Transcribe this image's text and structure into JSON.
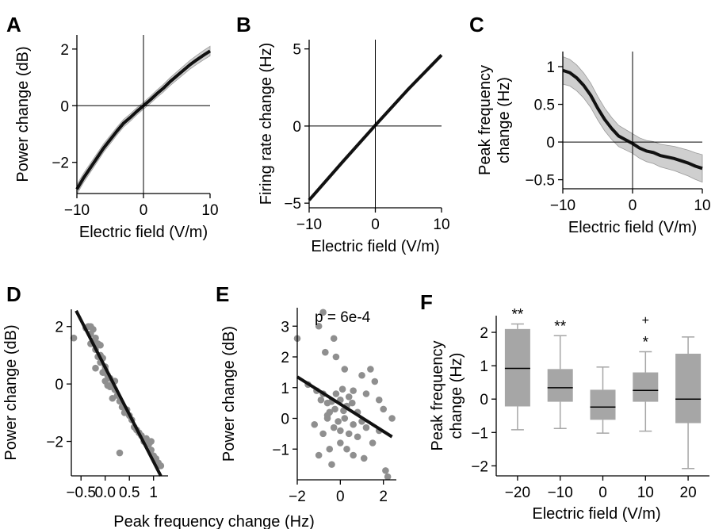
{
  "figure": {
    "shared_xlabel_DE": "Peak frequency change (Hz)"
  },
  "panels": {
    "A": {
      "letter": "A"
    },
    "B": {
      "letter": "B"
    },
    "C": {
      "letter": "C"
    },
    "D": {
      "letter": "D"
    },
    "E": {
      "letter": "E"
    },
    "F": {
      "letter": "F"
    }
  },
  "colors": {
    "line": "#111111",
    "band": "#cfcfcf",
    "band_edge": "#9a9a9a",
    "point": "#8f8f8f",
    "box": "#a6a6a6",
    "axis": "#000000"
  },
  "chart_data": [
    {
      "id": "A",
      "type": "line",
      "xlabel": "Electric field (V/m)",
      "ylabel": "Power change (dB)",
      "xlim": [
        -10,
        10
      ],
      "ylim": [
        -3.1,
        2.5
      ],
      "xticks": [
        -10,
        0,
        10
      ],
      "xtick_labels": [
        "−10",
        "0",
        "10"
      ],
      "yticks": [
        -2,
        0,
        2
      ],
      "ytick_labels": [
        "−2",
        "0",
        "2"
      ],
      "zero_lines": true,
      "confidence_band": true,
      "x": [
        -10,
        -9,
        -8,
        -7,
        -6,
        -5,
        -4,
        -3,
        -2,
        -1,
        0,
        1,
        2,
        3,
        4,
        5,
        6,
        7,
        8,
        9,
        10
      ],
      "y": [
        -2.95,
        -2.55,
        -2.2,
        -1.85,
        -1.5,
        -1.2,
        -0.9,
        -0.62,
        -0.42,
        -0.2,
        0,
        0.2,
        0.42,
        0.62,
        0.85,
        1.05,
        1.25,
        1.45,
        1.62,
        1.78,
        1.93
      ],
      "band_halfwidth": 0.12
    },
    {
      "id": "B",
      "type": "line",
      "xlabel": "Electric field (V/m)",
      "ylabel": "Firing rate change (Hz)",
      "xlim": [
        -10,
        10
      ],
      "ylim": [
        -5.3,
        5.6
      ],
      "xticks": [
        -10,
        0,
        10
      ],
      "xtick_labels": [
        "−10",
        "0",
        "10"
      ],
      "yticks": [
        -5,
        0,
        5
      ],
      "ytick_labels": [
        "−5",
        "0",
        "5"
      ],
      "zero_lines": true,
      "confidence_band": false,
      "x": [
        -10,
        -5,
        0,
        5,
        10
      ],
      "y": [
        -4.8,
        -2.35,
        0.05,
        2.4,
        4.6
      ]
    },
    {
      "id": "C",
      "type": "line",
      "xlabel": "Electric field (V/m)",
      "ylabel": "Peak frequency change (Hz)",
      "xlim": [
        -10,
        10
      ],
      "ylim": [
        -0.62,
        1.2
      ],
      "xticks": [
        -10,
        0,
        10
      ],
      "xtick_labels": [
        "−10",
        "0",
        "10"
      ],
      "yticks": [
        -0.5,
        0,
        0.5,
        1
      ],
      "ytick_labels": [
        "−0.5",
        "0",
        "0.5",
        "1"
      ],
      "zero_lines": true,
      "confidence_band": true,
      "x": [
        -10,
        -9,
        -8,
        -7,
        -6,
        -5,
        -4,
        -3,
        -2,
        -1,
        0,
        1,
        2,
        3,
        4,
        5,
        6,
        7,
        8,
        9,
        10
      ],
      "y": [
        0.95,
        0.92,
        0.85,
        0.75,
        0.62,
        0.45,
        0.3,
        0.18,
        0.08,
        0.03,
        -0.02,
        -0.08,
        -0.12,
        -0.14,
        -0.18,
        -0.2,
        -0.22,
        -0.25,
        -0.28,
        -0.32,
        -0.35
      ],
      "band_halfwidth": 0.13
    },
    {
      "id": "D",
      "type": "scatter",
      "xlabel": "",
      "ylabel": "Power change (dB)",
      "xlim": [
        -0.7,
        1.3
      ],
      "ylim": [
        -3.2,
        2.6
      ],
      "xticks": [
        -0.5,
        0,
        0.5,
        1
      ],
      "xtick_labels": [
        "−0.5",
        "0.0",
        "0.5",
        "1"
      ],
      "yticks": [
        -2,
        0,
        2
      ],
      "ytick_labels": [
        "−2",
        "0",
        "2"
      ],
      "points": [
        [
          -0.65,
          1.6
        ],
        [
          -0.4,
          1.95
        ],
        [
          -0.35,
          2.0
        ],
        [
          -0.3,
          2.0
        ],
        [
          -0.25,
          1.9
        ],
        [
          -0.3,
          1.75
        ],
        [
          -0.2,
          1.6
        ],
        [
          -0.25,
          1.5
        ],
        [
          -0.15,
          1.4
        ],
        [
          -0.2,
          1.2
        ],
        [
          -0.1,
          1.0
        ],
        [
          -0.05,
          0.9
        ],
        [
          -0.1,
          0.75
        ],
        [
          0.0,
          0.6
        ],
        [
          -0.05,
          0.4
        ],
        [
          0.05,
          0.3
        ],
        [
          0.1,
          0.2
        ],
        [
          0.0,
          0.1
        ],
        [
          0.15,
          0.0
        ],
        [
          0.1,
          -0.1
        ],
        [
          0.2,
          -0.2
        ],
        [
          0.25,
          -0.4
        ],
        [
          0.15,
          -0.5
        ],
        [
          0.3,
          -0.6
        ],
        [
          0.35,
          -0.8
        ],
        [
          0.4,
          -1.0
        ],
        [
          0.5,
          -1.1
        ],
        [
          0.55,
          -1.25
        ],
        [
          0.6,
          -1.5
        ],
        [
          0.7,
          -1.7
        ],
        [
          0.8,
          -2.0
        ],
        [
          0.9,
          -2.1
        ],
        [
          0.95,
          -2.3
        ],
        [
          1.0,
          -2.5
        ],
        [
          1.05,
          -2.6
        ],
        [
          1.1,
          -2.75
        ],
        [
          0.3,
          -2.4
        ],
        [
          0.85,
          -1.9
        ],
        [
          0.65,
          -1.6
        ],
        [
          0.45,
          -0.9
        ],
        [
          0.05,
          -0.05
        ],
        [
          -0.15,
          0.95
        ],
        [
          -0.3,
          1.4
        ],
        [
          -0.1,
          1.35
        ],
        [
          0.2,
          0.1
        ],
        [
          0.75,
          -1.8
        ],
        [
          1.15,
          -2.85
        ],
        [
          0.95,
          -2.0
        ],
        [
          0.0,
          0.5
        ],
        [
          -0.2,
          0.55
        ]
      ],
      "fit_line": {
        "x": [
          -0.6,
          1.15
        ],
        "y": [
          2.55,
          -3.2
        ]
      }
    },
    {
      "id": "E",
      "type": "scatter",
      "xlabel": "",
      "ylabel": "Power change (dB)",
      "xlim": [
        -2,
        2.6
      ],
      "ylim": [
        -2.0,
        3.6
      ],
      "xticks": [
        -2,
        0,
        2
      ],
      "xtick_labels": [
        "−2",
        "0",
        "2"
      ],
      "yticks": [
        -1,
        0,
        1,
        2,
        3
      ],
      "ytick_labels": [
        "−1",
        "0",
        "1",
        "2",
        "3"
      ],
      "annotation": "p = 6e-4",
      "points": [
        [
          -2.0,
          2.6
        ],
        [
          -0.8,
          3.45
        ],
        [
          -1.0,
          3.0
        ],
        [
          -0.7,
          2.15
        ],
        [
          -0.3,
          2.6
        ],
        [
          -0.2,
          2.0
        ],
        [
          0.2,
          1.6
        ],
        [
          -1.5,
          1.1
        ],
        [
          -1.1,
          0.9
        ],
        [
          -0.9,
          0.6
        ],
        [
          -0.8,
          0.8
        ],
        [
          -0.6,
          0.5
        ],
        [
          -0.5,
          0.2
        ],
        [
          -0.4,
          0.55
        ],
        [
          -0.2,
          0.8
        ],
        [
          0.0,
          0.6
        ],
        [
          0.1,
          0.95
        ],
        [
          0.3,
          0.4
        ],
        [
          0.4,
          0.7
        ],
        [
          0.6,
          0.9
        ],
        [
          0.8,
          0.2
        ],
        [
          1.0,
          1.4
        ],
        [
          1.2,
          0.8
        ],
        [
          1.4,
          1.6
        ],
        [
          1.6,
          1.2
        ],
        [
          1.8,
          0.6
        ],
        [
          2.0,
          0.3
        ],
        [
          2.4,
          0.0
        ],
        [
          -1.2,
          -0.2
        ],
        [
          -0.8,
          -0.5
        ],
        [
          -0.6,
          0.0
        ],
        [
          -0.3,
          -0.3
        ],
        [
          -0.1,
          -0.1
        ],
        [
          0.0,
          -0.4
        ],
        [
          0.2,
          0.0
        ],
        [
          0.4,
          -0.5
        ],
        [
          0.6,
          -0.2
        ],
        [
          0.8,
          -0.6
        ],
        [
          1.0,
          -0.1
        ],
        [
          1.2,
          -0.3
        ],
        [
          1.5,
          -0.8
        ],
        [
          1.8,
          -0.4
        ],
        [
          -1.0,
          -1.2
        ],
        [
          -0.5,
          -1.0
        ],
        [
          0.0,
          -0.8
        ],
        [
          0.3,
          -1.0
        ],
        [
          0.6,
          -1.2
        ],
        [
          1.1,
          -1.3
        ],
        [
          -0.4,
          -1.5
        ],
        [
          2.1,
          -1.7
        ],
        [
          2.2,
          -1.9
        ],
        [
          -0.6,
          0.1
        ],
        [
          0.15,
          0.25
        ],
        [
          -0.25,
          0.3
        ],
        [
          0.55,
          0.5
        ]
      ],
      "fit_line": {
        "x": [
          -2.0,
          2.4
        ],
        "y": [
          1.35,
          -0.6
        ]
      }
    },
    {
      "id": "F",
      "type": "box",
      "xlabel": "Electric field (V/m)",
      "ylabel": "Peak frequency change (Hz)",
      "ylim": [
        -2.3,
        2.5
      ],
      "categories": [
        "−20",
        "−10",
        "0",
        "10",
        "20"
      ],
      "yticks": [
        -2,
        -1,
        0,
        1,
        2
      ],
      "ytick_labels": [
        "−2",
        "−1",
        "0",
        "1",
        "2"
      ],
      "boxes": [
        {
          "q1": -0.22,
          "median": 0.92,
          "q3": 2.1,
          "whisker_low": -0.92,
          "whisker_high": 2.25,
          "outliers": [],
          "sig": "**"
        },
        {
          "q1": -0.08,
          "median": 0.34,
          "q3": 0.9,
          "whisker_low": -0.88,
          "whisker_high": 1.9,
          "outliers": [],
          "sig": "**"
        },
        {
          "q1": -0.62,
          "median": -0.24,
          "q3": 0.28,
          "whisker_low": -1.02,
          "whisker_high": 0.96,
          "outliers": [],
          "sig": ""
        },
        {
          "q1": -0.08,
          "median": 0.26,
          "q3": 0.8,
          "whisker_low": -0.96,
          "whisker_high": 1.42,
          "outliers": [
            2.38
          ],
          "sig": "*"
        },
        {
          "q1": -0.72,
          "median": 0.0,
          "q3": 1.36,
          "whisker_low": -2.08,
          "whisker_high": 1.86,
          "outliers": [],
          "sig": ""
        }
      ]
    }
  ]
}
